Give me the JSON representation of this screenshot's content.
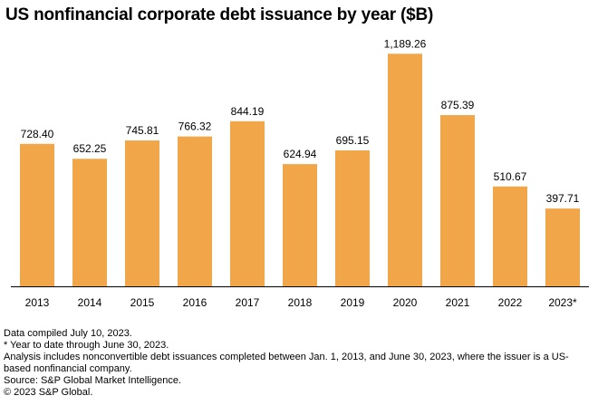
{
  "chart_data": {
    "type": "bar",
    "title": "US nonfinancial corporate debt issuance by year ($B)",
    "xlabel": "",
    "ylabel": "",
    "categories": [
      "2013",
      "2014",
      "2015",
      "2016",
      "2017",
      "2018",
      "2019",
      "2020",
      "2021",
      "2022",
      "2023*"
    ],
    "values": [
      728.4,
      652.25,
      745.81,
      766.32,
      844.19,
      624.94,
      695.15,
      1189.26,
      875.39,
      510.67,
      397.71
    ],
    "value_labels": [
      "728.40",
      "652.25",
      "745.81",
      "766.32",
      "844.19",
      "624.94",
      "695.15",
      "1,189.26",
      "875.39",
      "510.67",
      "397.71"
    ],
    "ylim": [
      0,
      1200
    ],
    "grid": false,
    "legend": "none",
    "bar_color": "#F2A64A"
  },
  "notes": {
    "line1": "Data compiled July 10, 2023.",
    "line2": "* Year to date through June 30, 2023.",
    "line3": "Analysis includes nonconvertible debt issuances completed between Jan. 1, 2013, and June 30, 2023, where the issuer is a US-based nonfinancial company.",
    "line4": "Source: S&P Global Market Intelligence.",
    "line5": "© 2023 S&P Global."
  }
}
